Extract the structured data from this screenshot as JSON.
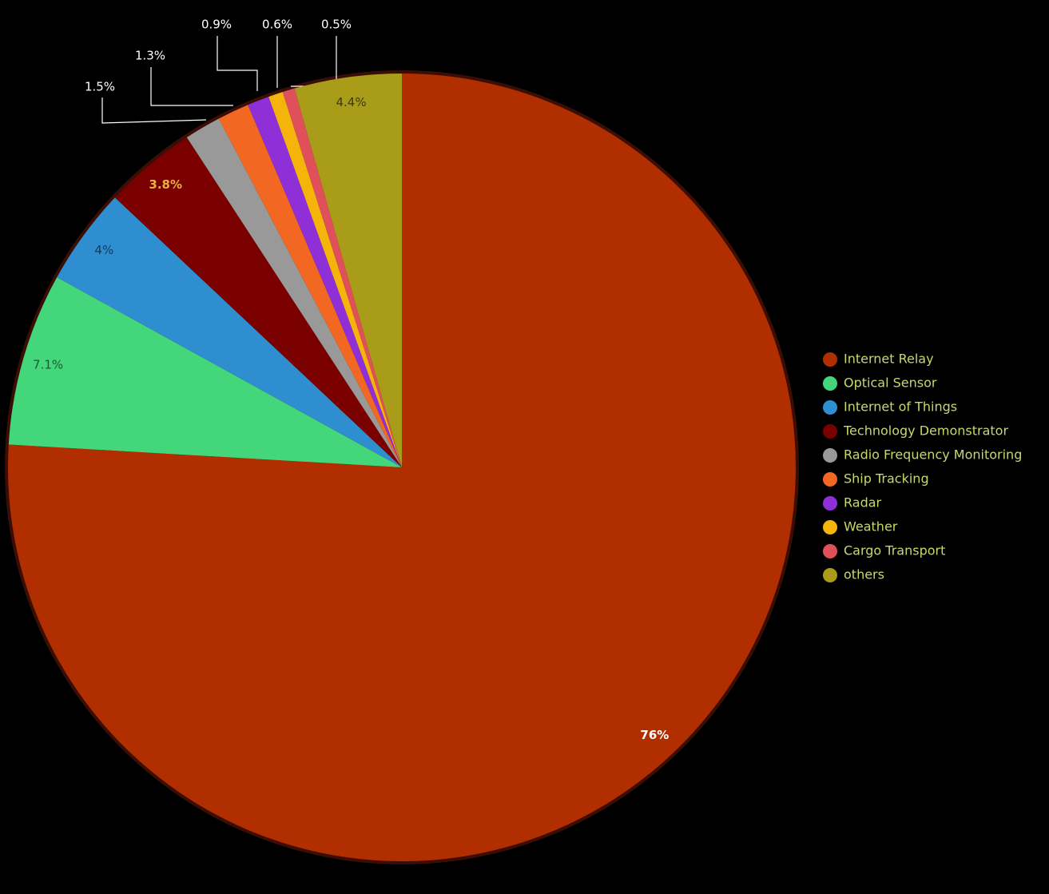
{
  "chart_data": {
    "type": "pie",
    "categories": [
      "Internet Relay",
      "Optical Sensor",
      "Internet of Things",
      "Technology Demonstrator",
      "Radio Frequency Monitoring",
      "Ship Tracking",
      "Radar",
      "Weather",
      "Cargo Transport",
      "others"
    ],
    "values": [
      76,
      7.1,
      4,
      3.8,
      1.5,
      1.3,
      0.9,
      0.6,
      0.5,
      4.4
    ],
    "value_labels": [
      "76%",
      "7.1%",
      "4%",
      "3.8%",
      "1.5%",
      "1.3%",
      "0.9%",
      "0.6%",
      "0.5%",
      "4.4%"
    ],
    "colors": [
      "#b02e00",
      "#43d67a",
      "#2e8ecf",
      "#7a0000",
      "#999999",
      "#f26722",
      "#8e2fd8",
      "#f5b40a",
      "#e0505a",
      "#a89c18"
    ]
  }
}
